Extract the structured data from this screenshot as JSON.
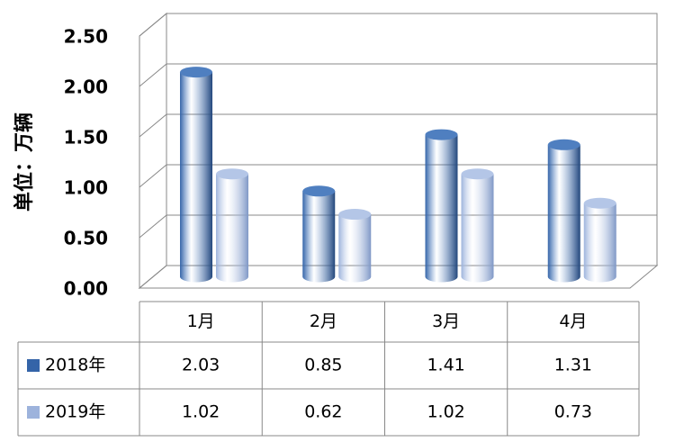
{
  "chart_data": {
    "type": "bar3d",
    "y_label": "单位：万辆",
    "categories": [
      "1月",
      "2月",
      "3月",
      "4月"
    ],
    "series": [
      {
        "name": "2018年",
        "color": "#3464a8",
        "values": [
          2.03,
          0.85,
          1.41,
          1.31
        ]
      },
      {
        "name": "2019年",
        "color": "#9db3dc",
        "values": [
          1.02,
          0.62,
          1.02,
          0.73
        ]
      }
    ],
    "ylim": [
      0,
      2.5
    ],
    "yticks": [
      {
        "value": 0,
        "label": "0.00"
      },
      {
        "value": 0.5,
        "label": "0.50"
      },
      {
        "value": 1,
        "label": "1.00"
      },
      {
        "value": 1.5,
        "label": "1.50"
      },
      {
        "value": 2,
        "label": "2.00"
      },
      {
        "value": 2.5,
        "label": "2.50"
      }
    ],
    "grid": true
  }
}
